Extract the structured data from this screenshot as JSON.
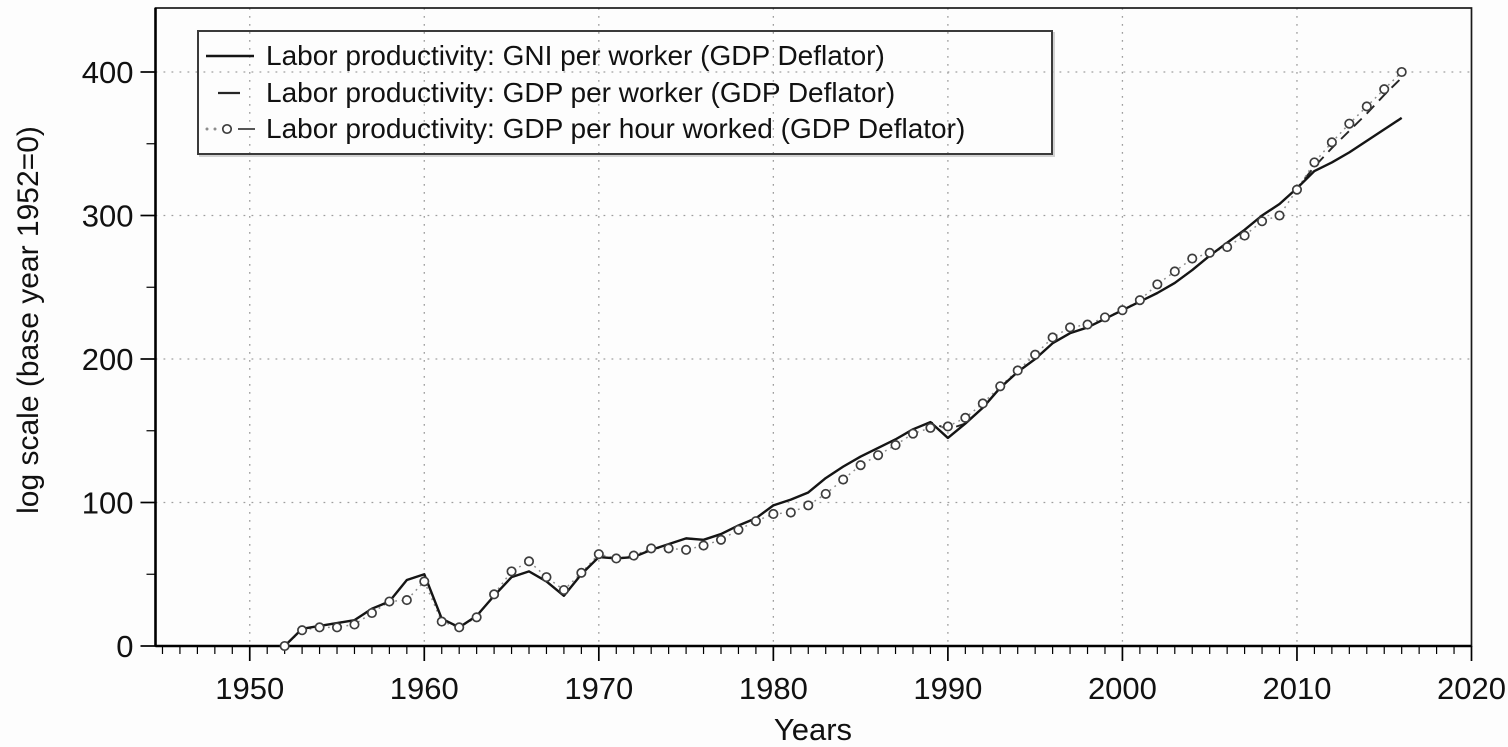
{
  "figure": {
    "x_axis_label": "Years",
    "y_axis_label": "log scale (base year 1952=0)"
  },
  "legend": {
    "items": [
      {
        "label": "Labor productivity: GNI per worker (GDP Deflator)"
      },
      {
        "label": "Labor productivity: GDP per worker (GDP Deflator)"
      },
      {
        "label": "Labor productivity: GDP per hour worked (GDP Deflator)"
      }
    ]
  },
  "colors": {
    "solid_line": "#151515",
    "dashed_line": "#262626",
    "dotted_line": "#8c8c8c",
    "marker_stroke": "#3d3d3d",
    "grid": "#9e9e9e",
    "text": "#111111",
    "background": "#fdfdfd"
  },
  "chart_data": {
    "type": "line",
    "title": "",
    "xlabel": "Years",
    "ylabel": "log scale (base year 1952=0)",
    "legend_position": "top-left",
    "grid": "dotted",
    "x_range": [
      1944.6,
      2020
    ],
    "y_range": [
      0,
      444.6
    ],
    "x_ticks_major": [
      1950,
      1960,
      1970,
      1980,
      1990,
      2000,
      2010,
      2020
    ],
    "x_minor_tick_step_years": 1,
    "y_ticks_major": [
      0,
      100,
      200,
      300,
      400
    ],
    "y_ticks_minor": [
      50,
      150,
      250,
      350
    ],
    "x_gridlines": [
      1950,
      1960,
      1970,
      1980,
      1990,
      2000,
      2010
    ],
    "x": [
      1952,
      1953,
      1954,
      1955,
      1956,
      1957,
      1958,
      1959,
      1960,
      1961,
      1962,
      1963,
      1964,
      1965,
      1966,
      1967,
      1968,
      1969,
      1970,
      1971,
      1972,
      1973,
      1974,
      1975,
      1976,
      1977,
      1978,
      1979,
      1980,
      1981,
      1982,
      1983,
      1984,
      1985,
      1986,
      1987,
      1988,
      1989,
      1990,
      1991,
      1992,
      1993,
      1994,
      1995,
      1996,
      1997,
      1998,
      1999,
      2000,
      2001,
      2002,
      2003,
      2004,
      2005,
      2006,
      2007,
      2008,
      2009,
      2010,
      2011,
      2012,
      2013,
      2014,
      2015,
      2016
    ],
    "series": [
      {
        "name": "Labor productivity: GNI per worker (GDP Deflator)",
        "style": "solid",
        "values": [
          0,
          12,
          14,
          16,
          18,
          26,
          31,
          46,
          50,
          19,
          13,
          21,
          35,
          48,
          52,
          45,
          35,
          50,
          62,
          61,
          62,
          67,
          71,
          75,
          74,
          78,
          84,
          89,
          98,
          102,
          107,
          117,
          125,
          132,
          138,
          144,
          151,
          156,
          145,
          155,
          166,
          180,
          191,
          200,
          211,
          218,
          222,
          228,
          234,
          240,
          246,
          253,
          262,
          272,
          281,
          290,
          300,
          308,
          319,
          331,
          337,
          344,
          352,
          360,
          368
        ]
      },
      {
        "name": "Labor productivity: GDP per worker (GDP Deflator)",
        "style": "dashed",
        "values": [
          0,
          12,
          14,
          16,
          18,
          26,
          31,
          46,
          50,
          19,
          13,
          21,
          35,
          48,
          52,
          45,
          35,
          50,
          62,
          61,
          62,
          67,
          71,
          75,
          74,
          78,
          84,
          89,
          98,
          102,
          107,
          117,
          125,
          132,
          138,
          144,
          151,
          156,
          151,
          155,
          166,
          180,
          191,
          200,
          211,
          218,
          222,
          228,
          234,
          240,
          246,
          253,
          262,
          272,
          281,
          290,
          300,
          308,
          319,
          334,
          347,
          359,
          371,
          384,
          396
        ]
      },
      {
        "name": "Labor productivity: GDP per hour worked (GDP Deflator)",
        "style": "dotted-circles",
        "values": [
          0,
          11,
          13,
          13,
          15,
          23,
          31,
          32,
          45,
          17,
          13,
          20,
          36,
          52,
          59,
          48,
          39,
          51,
          64,
          61,
          63,
          68,
          68,
          67,
          70,
          74,
          81,
          87,
          92,
          93,
          98,
          106,
          116,
          126,
          133,
          140,
          148,
          152,
          153,
          159,
          169,
          181,
          192,
          203,
          215,
          222,
          224,
          229,
          234,
          241,
          252,
          261,
          270,
          274,
          278,
          286,
          296,
          300,
          318,
          337,
          351,
          364,
          376,
          388,
          400
        ]
      }
    ]
  }
}
